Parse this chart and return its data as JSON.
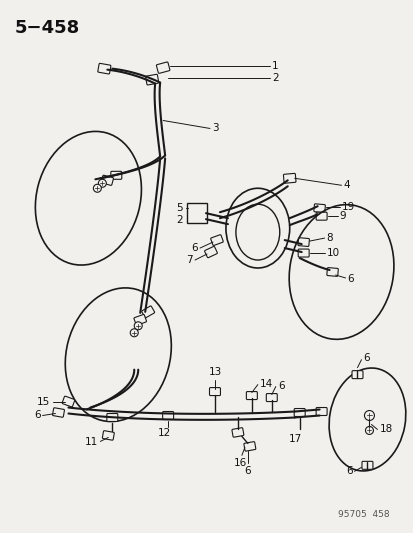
{
  "title": "5−458",
  "subtitle": "95705  458",
  "bg": "#f2f0ed",
  "lc": "#1a1a1a",
  "tc": "#111111",
  "fw": 4.14,
  "fh": 5.33,
  "dpi": 100
}
